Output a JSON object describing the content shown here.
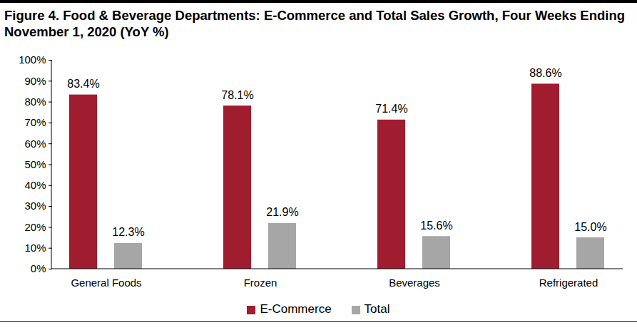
{
  "chart_data": {
    "type": "bar",
    "title": "Figure 4. Food & Beverage Departments: E-Commerce and Total Sales Growth, Four Weeks Ending November 1, 2020 (YoY %)",
    "categories": [
      "General Foods",
      "Frozen",
      "Beverages",
      "Refrigerated"
    ],
    "series": [
      {
        "name": "E-Commerce",
        "color": "#a01c2f",
        "values": [
          83.4,
          78.1,
          71.4,
          88.6
        ],
        "value_labels": [
          "83.4%",
          "78.1%",
          "71.4%",
          "88.6%"
        ]
      },
      {
        "name": "Total",
        "color": "#a6a6a6",
        "values": [
          12.3,
          21.9,
          15.6,
          15.0
        ],
        "value_labels": [
          "12.3%",
          "21.9%",
          "15.6%",
          "15.0%"
        ]
      }
    ],
    "ylim": [
      0,
      100
    ],
    "yticks": [
      {
        "value": 0,
        "label": "0%"
      },
      {
        "value": 10,
        "label": "10%"
      },
      {
        "value": 20,
        "label": "20%"
      },
      {
        "value": 30,
        "label": "30%"
      },
      {
        "value": 40,
        "label": "40%"
      },
      {
        "value": 50,
        "label": "50%"
      },
      {
        "value": 60,
        "label": "60%"
      },
      {
        "value": 70,
        "label": "70%"
      },
      {
        "value": 80,
        "label": "80%"
      },
      {
        "value": 90,
        "label": "90%"
      },
      {
        "value": 100,
        "label": "100%"
      }
    ],
    "grid": false,
    "data_labels": true,
    "legend": "bottom"
  }
}
